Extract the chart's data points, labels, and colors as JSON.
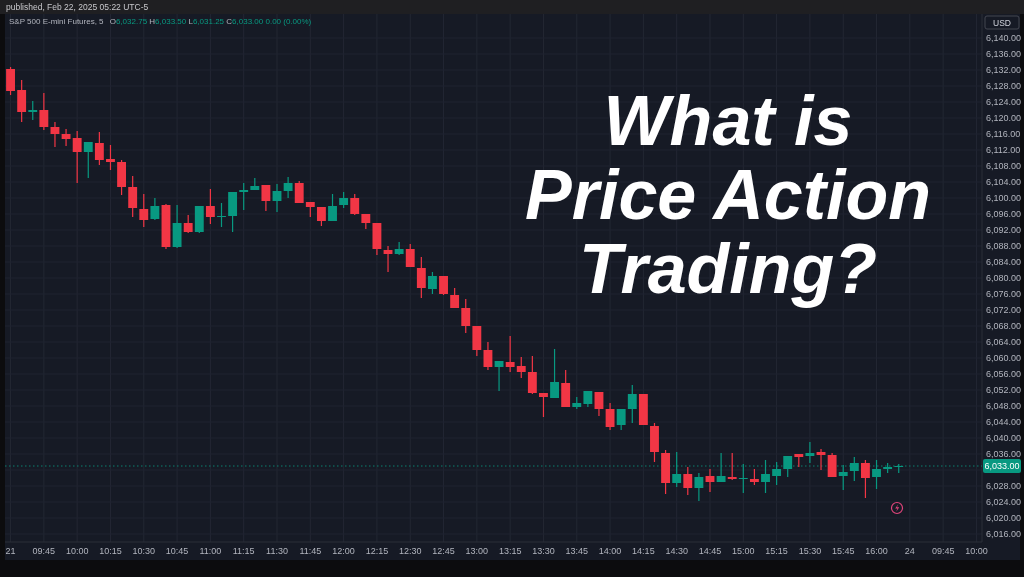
{
  "chart_data": {
    "type": "candlestick",
    "title": "What is Price Action Trading?",
    "subtitle": "S&P 500 E-mini Futures, 5",
    "ylabel": "USD",
    "annotations": [
      "published, Feb 22, 2025 05:22 UTC-5",
      "O6,032.75 H6,033.50 L6,031.25 C6,033.00 0.00 (0.00%)"
    ],
    "categories": [
      "21",
      null,
      null,
      "09:45",
      null,
      null,
      "10:00",
      null,
      null,
      "10:15",
      null,
      null,
      "10:30",
      null,
      null,
      "10:45",
      null,
      null,
      "11:00",
      null,
      null,
      "11:15",
      null,
      null,
      "11:30",
      null,
      null,
      "11:45",
      null,
      null,
      "12:00",
      null,
      null,
      "12:15",
      null,
      null,
      "12:30",
      null,
      null,
      "12:45",
      null,
      null,
      "13:00",
      null,
      null,
      "13:15",
      null,
      null,
      "13:30",
      null,
      null,
      "13:45",
      null,
      null,
      "14:00",
      null,
      null,
      "14:15",
      null,
      null,
      "14:30",
      null,
      null,
      "14:45",
      null,
      null,
      "15:00",
      null,
      null,
      "15:15",
      null,
      null,
      "15:30",
      null,
      null,
      "15:45",
      null,
      null,
      "16:00",
      null,
      null,
      "24",
      null,
      null,
      "09:45",
      null,
      null,
      "10:00"
    ],
    "ohlc": [
      [
        6132.25,
        6132.75,
        6125.75,
        6126.75
      ],
      [
        6127,
        6129.5,
        6119,
        6121.5
      ],
      [
        6121.5,
        6124.25,
        6119.5,
        6122
      ],
      [
        6122,
        6126.25,
        6117,
        6117.75
      ],
      [
        6117.75,
        6119,
        6112.75,
        6116
      ],
      [
        6116,
        6117.25,
        6113,
        6114.75
      ],
      [
        6115,
        6116.75,
        6103.75,
        6111.5
      ],
      [
        6111.5,
        6114,
        6105,
        6114
      ],
      [
        6113.75,
        6116.5,
        6108.25,
        6109.5
      ],
      [
        6109.75,
        6113.25,
        6107,
        6109
      ],
      [
        6109,
        6109.5,
        6100.75,
        6102.75
      ],
      [
        6102.75,
        6105.5,
        6095.25,
        6097.5
      ],
      [
        6097.25,
        6101,
        6092.75,
        6094.5
      ],
      [
        6094.75,
        6100,
        6094.5,
        6098
      ],
      [
        6098.25,
        6098.5,
        6087.25,
        6087.75
      ],
      [
        6087.75,
        6098.25,
        6087.5,
        6093.75
      ],
      [
        6093.75,
        6095.75,
        6091.25,
        6091.5
      ],
      [
        6091.5,
        6098,
        6091.25,
        6098
      ],
      [
        6098,
        6102.25,
        6093.5,
        6095.25
      ],
      [
        6095.25,
        6098.75,
        6092.75,
        6095.5
      ],
      [
        6095.5,
        6101.5,
        6091.5,
        6101.5
      ],
      [
        6101.5,
        6103.75,
        6097,
        6102
      ],
      [
        6102,
        6105,
        6102,
        6103
      ],
      [
        6103.25,
        6103.25,
        6096.75,
        6099.25
      ],
      [
        6099.25,
        6103.5,
        6096.5,
        6101.75
      ],
      [
        6101.75,
        6105.25,
        6100,
        6103.75
      ],
      [
        6103.75,
        6104.25,
        6098.75,
        6098.75
      ],
      [
        6099,
        6099,
        6095.25,
        6097.75
      ],
      [
        6097.75,
        6097.75,
        6093,
        6094.25
      ],
      [
        6094.25,
        6101,
        6094.25,
        6098
      ],
      [
        6098.25,
        6101.5,
        6097.5,
        6100
      ],
      [
        6100,
        6101,
        6095.75,
        6096
      ],
      [
        6096,
        6096,
        6092.25,
        6093.75
      ],
      [
        6093.75,
        6093.75,
        6085.75,
        6087.25
      ],
      [
        6087,
        6088,
        6081.5,
        6086
      ],
      [
        6086,
        6089,
        6085.75,
        6087.25
      ],
      [
        6087.25,
        6088.5,
        6082.75,
        6082.75
      ],
      [
        6082.5,
        6085.25,
        6075,
        6077.5
      ],
      [
        6077.25,
        6081.5,
        6076,
        6080.5
      ],
      [
        6080.5,
        6080.5,
        6075.75,
        6076
      ],
      [
        6075.75,
        6077.5,
        6072.5,
        6072.5
      ],
      [
        6072.5,
        6074.75,
        6066.25,
        6068
      ],
      [
        6068,
        6068,
        6060.5,
        6062
      ],
      [
        6062,
        6064,
        6057,
        6057.75
      ],
      [
        6057.75,
        6059.25,
        6051.75,
        6059.25
      ],
      [
        6059,
        6065.5,
        6056.5,
        6057.75
      ],
      [
        6058,
        6060.25,
        6055,
        6056.5
      ],
      [
        6056.5,
        6060.5,
        6051,
        6051.25
      ],
      [
        6051.25,
        6051.25,
        6045.25,
        6050.25
      ],
      [
        6050,
        6062.25,
        6050,
        6054
      ],
      [
        6053.75,
        6057,
        6047.75,
        6047.75
      ],
      [
        6047.75,
        6050.25,
        6047.25,
        6048.75
      ],
      [
        6048.5,
        6051.75,
        6047.75,
        6051.75
      ],
      [
        6051.5,
        6051.5,
        6045.5,
        6047.25
      ],
      [
        6047.25,
        6048.75,
        6042,
        6042.75
      ],
      [
        6043.25,
        6047.25,
        6042,
        6047.25
      ],
      [
        6047.25,
        6053.25,
        6043.75,
        6051
      ],
      [
        6051,
        6051,
        6043.25,
        6043.25
      ],
      [
        6043,
        6043.75,
        6034,
        6036.5
      ],
      [
        6036.25,
        6037,
        6026,
        6028.75
      ],
      [
        6028.75,
        6036.5,
        6027.75,
        6031
      ],
      [
        6031,
        6032.75,
        6025.75,
        6027.5
      ],
      [
        6027.5,
        6031.25,
        6024.25,
        6030.25
      ],
      [
        6030.5,
        6032.25,
        6026.5,
        6029
      ],
      [
        6029,
        6036.25,
        6029,
        6030.5
      ],
      [
        6030.25,
        6036.25,
        6029.5,
        6029.75
      ],
      [
        6029.75,
        6033.5,
        6026.25,
        6030
      ],
      [
        6029.75,
        6032.25,
        6028.25,
        6029
      ],
      [
        6029,
        6034.5,
        6026.25,
        6031
      ],
      [
        6030.5,
        6034,
        6028.25,
        6032.25
      ],
      [
        6032.25,
        6035.5,
        6030.25,
        6035.5
      ],
      [
        6036,
        6036,
        6032.75,
        6035.25
      ],
      [
        6035.5,
        6039,
        6033.75,
        6036.25
      ],
      [
        6036.5,
        6037.25,
        6032,
        6035.75
      ],
      [
        6035.75,
        6036.25,
        6030.25,
        6030.25
      ],
      [
        6030.5,
        6033.25,
        6027,
        6031.5
      ],
      [
        6031.75,
        6035.25,
        6029.25,
        6033.75
      ],
      [
        6033.75,
        6034.5,
        6025,
        6030
      ],
      [
        6030.25,
        6034.5,
        6027.25,
        6032.25
      ],
      [
        6032.25,
        6033.75,
        6031.25,
        6032.75
      ],
      [
        6032.75,
        6033.5,
        6031.25,
        6033
      ],
      null,
      null,
      null,
      null,
      null,
      null,
      null
    ],
    "colors": [
      "#f23645",
      "#f23645",
      "#089981",
      "#f23645",
      "#f23645",
      "#f23645",
      "#f23645",
      "#089981",
      "#f23645",
      "#f23645",
      "#f23645",
      "#f23645",
      "#f23645",
      "#089981",
      "#f23645",
      "#089981",
      "#f23645",
      "#089981",
      "#f23645",
      "#089981",
      "#089981",
      "#089981",
      "#089981",
      "#f23645",
      "#089981",
      "#089981",
      "#f23645",
      "#f23645",
      "#f23645",
      "#089981",
      "#089981",
      "#f23645",
      "#f23645",
      "#f23645",
      "#f23645",
      "#089981",
      "#f23645",
      "#f23645",
      "#089981",
      "#f23645",
      "#f23645",
      "#f23645",
      "#f23645",
      "#f23645",
      "#089981",
      "#f23645",
      "#f23645",
      "#f23645",
      "#f23645",
      "#089981",
      "#f23645",
      "#089981",
      "#089981",
      "#f23645",
      "#f23645",
      "#089981",
      "#089981",
      "#f23645",
      "#f23645",
      "#f23645",
      "#089981",
      "#f23645",
      "#089981",
      "#f23645",
      "#089981",
      "#f23645",
      "#089981",
      "#f23645",
      "#089981",
      "#089981",
      "#089981",
      "#f23645",
      "#089981",
      "#f23645",
      "#f23645",
      "#089981",
      "#089981",
      "#f23645",
      "#089981",
      "#089981",
      "#089981",
      null,
      null,
      null,
      null,
      null,
      null,
      null
    ],
    "ylim": [
      6014,
      6146
    ],
    "yticks": [
      {
        "value": 6016,
        "label": "6,016.00"
      },
      {
        "value": 6020,
        "label": "6,020.00"
      },
      {
        "value": 6024,
        "label": "6,024.00"
      },
      {
        "value": 6028,
        "label": "6,028.00"
      },
      {
        "value": 6032,
        "label": null
      },
      {
        "value": 6036,
        "label": "6,036.00"
      },
      {
        "value": 6040,
        "label": "6,040.00"
      },
      {
        "value": 6044,
        "label": "6,044.00"
      },
      {
        "value": 6048,
        "label": "6,048.00"
      },
      {
        "value": 6052,
        "label": "6,052.00"
      },
      {
        "value": 6056,
        "label": "6,056.00"
      },
      {
        "value": 6060,
        "label": "6,060.00"
      },
      {
        "value": 6064,
        "label": "6,064.00"
      },
      {
        "value": 6068,
        "label": "6,068.00"
      },
      {
        "value": 6072,
        "label": "6,072.00"
      },
      {
        "value": 6076,
        "label": "6,076.00"
      },
      {
        "value": 6080,
        "label": "6,080.00"
      },
      {
        "value": 6084,
        "label": "6,084.00"
      },
      {
        "value": 6088,
        "label": "6,088.00"
      },
      {
        "value": 6092,
        "label": "6,092.00"
      },
      {
        "value": 6096,
        "label": "6,096.00"
      },
      {
        "value": 6100,
        "label": "6,100.00"
      },
      {
        "value": 6104,
        "label": "6,104.00"
      },
      {
        "value": 6108,
        "label": "6,108.00"
      },
      {
        "value": 6112,
        "label": "6,112.00"
      },
      {
        "value": 6116,
        "label": "6,116.00"
      },
      {
        "value": 6120,
        "label": "6,120.00"
      },
      {
        "value": 6124,
        "label": "6,124.00"
      },
      {
        "value": 6128,
        "label": "6,128.00"
      },
      {
        "value": 6132,
        "label": "6,132.00"
      },
      {
        "value": 6136,
        "label": "6,136.00"
      },
      {
        "value": 6140,
        "label": "6,140.00"
      }
    ],
    "grid": true,
    "ref_lines": [
      {
        "axis": "y",
        "value": 6033,
        "label": "6,033.00",
        "color": "#089981",
        "line_style": "dotted"
      }
    ]
  }
}
